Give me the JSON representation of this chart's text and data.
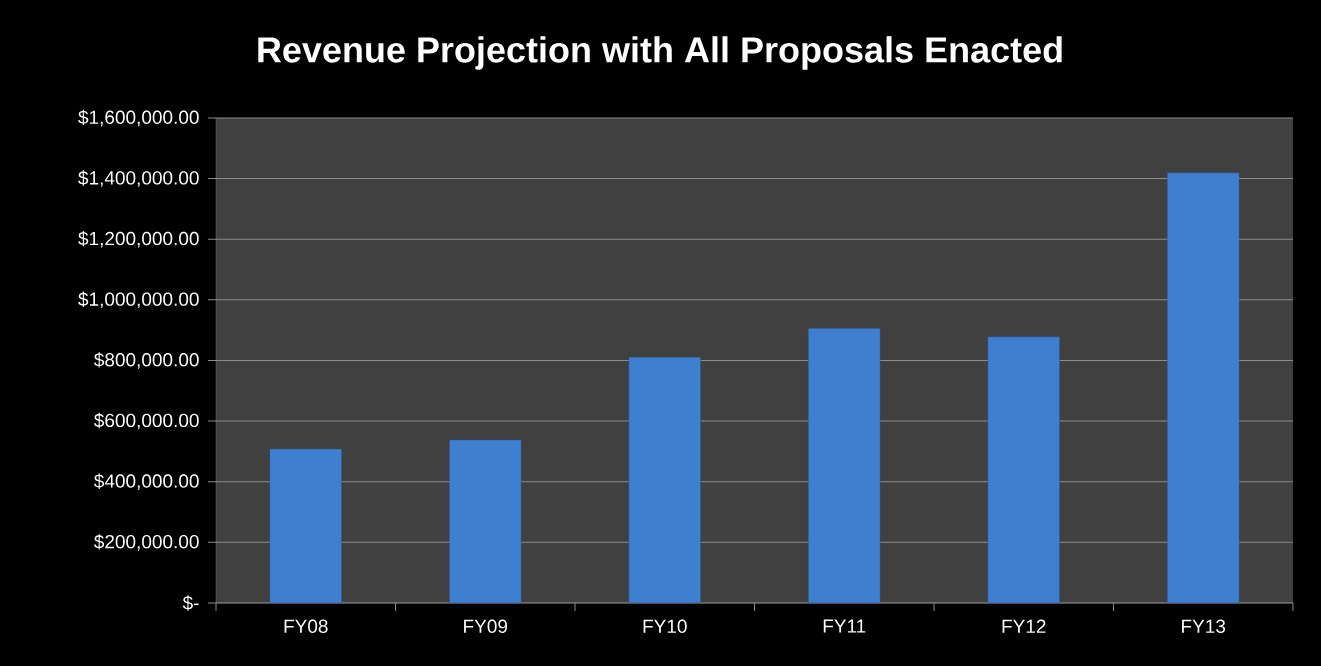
{
  "chart_data": {
    "type": "bar",
    "title": "Revenue Projection with All Proposals Enacted",
    "categories": [
      "FY08",
      "FY09",
      "FY10",
      "FY11",
      "FY12",
      "FY13"
    ],
    "values": [
      508000,
      538000,
      811000,
      906000,
      878000,
      1419000
    ],
    "color": "#3f7fd0",
    "ylim": [
      0,
      1600000
    ],
    "yticks": [
      {
        "value": 0,
        "label": "$-"
      },
      {
        "value": 200000,
        "label": "$200,000.00"
      },
      {
        "value": 400000,
        "label": "$400,000.00"
      },
      {
        "value": 600000,
        "label": "$600,000.00"
      },
      {
        "value": 800000,
        "label": "$800,000.00"
      },
      {
        "value": 1000000,
        "label": "$1,000,000.00"
      },
      {
        "value": 1200000,
        "label": "$1,200,000.00"
      },
      {
        "value": 1400000,
        "label": "$1,400,000.00"
      },
      {
        "value": 1600000,
        "label": "$1,600,000.00"
      }
    ],
    "grid": "y"
  }
}
